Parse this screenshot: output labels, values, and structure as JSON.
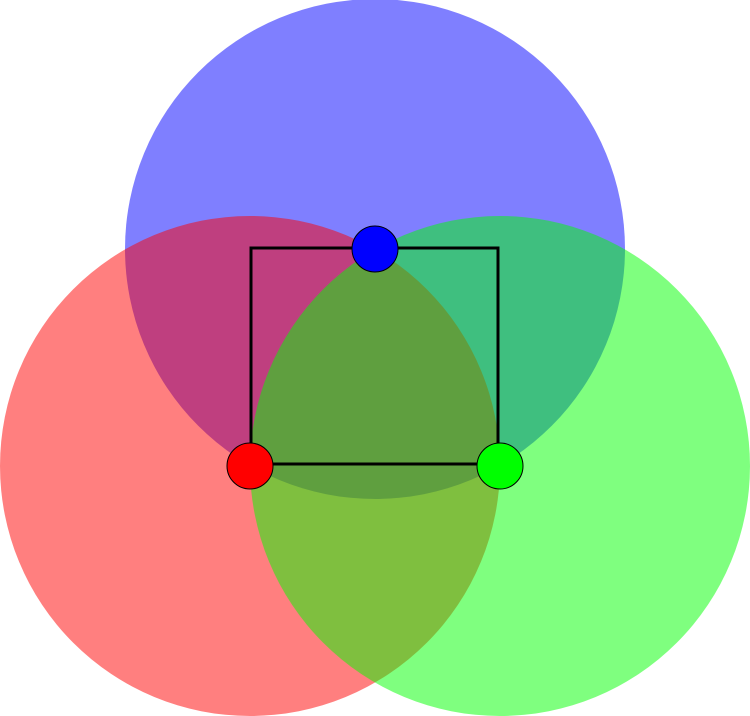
{
  "diagram": {
    "background": "#ffffff",
    "circles": [
      {
        "id": "blue",
        "fill": "#0000ff",
        "opacity": 0.5
      },
      {
        "id": "red",
        "fill": "#ff0000",
        "opacity": 0.5
      },
      {
        "id": "green",
        "fill": "#00ff00",
        "opacity": 0.5
      }
    ],
    "frame": {
      "stroke": "#000000"
    },
    "points": [
      {
        "id": "blue",
        "fill": "#0000ff",
        "stroke": "#000000"
      },
      {
        "id": "red",
        "fill": "#ff0000",
        "stroke": "#000000"
      },
      {
        "id": "green",
        "fill": "#00ff00",
        "stroke": "#000000"
      }
    ]
  }
}
